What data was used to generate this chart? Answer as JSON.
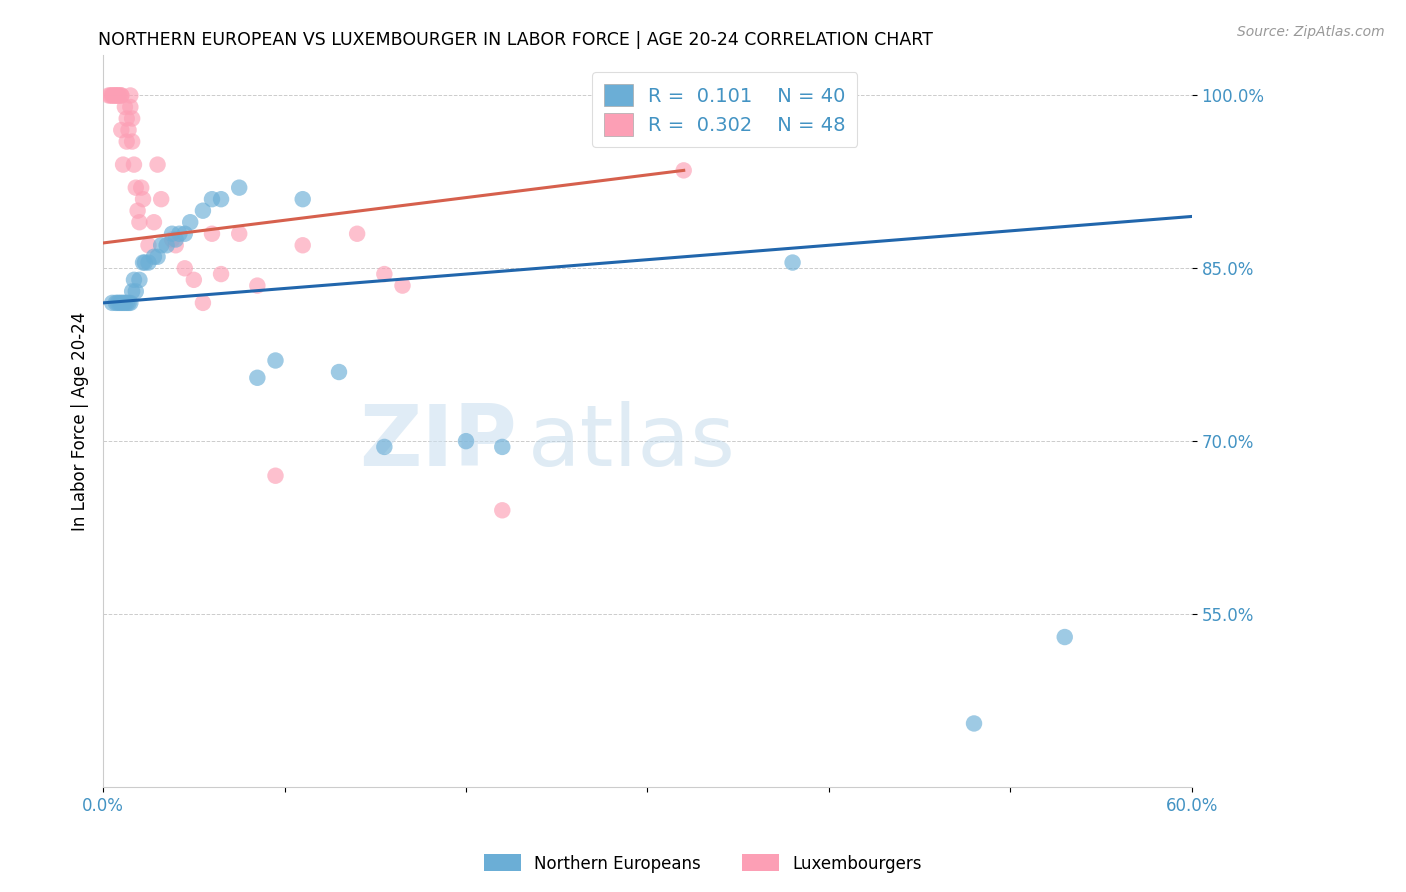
{
  "title": "NORTHERN EUROPEAN VS LUXEMBOURGER IN LABOR FORCE | AGE 20-24 CORRELATION CHART",
  "source": "Source: ZipAtlas.com",
  "ylabel": "In Labor Force | Age 20-24",
  "x_min": 0.0,
  "x_max": 0.6,
  "y_min": 0.4,
  "y_max": 1.035,
  "x_ticks": [
    0.0,
    0.1,
    0.2,
    0.3,
    0.4,
    0.5,
    0.6
  ],
  "x_tick_labels": [
    "0.0%",
    "",
    "",
    "",
    "",
    "",
    "60.0%"
  ],
  "y_ticks": [
    0.55,
    0.7,
    0.85,
    1.0
  ],
  "y_tick_labels": [
    "55.0%",
    "70.0%",
    "85.0%",
    "100.0%"
  ],
  "blue_R": 0.101,
  "blue_N": 40,
  "pink_R": 0.302,
  "pink_N": 48,
  "blue_color": "#6baed6",
  "pink_color": "#fc9fb5",
  "blue_line_color": "#2166ac",
  "pink_line_color": "#d6604d",
  "axis_color": "#4393c3",
  "grid_color": "#cccccc",
  "background_color": "#ffffff",
  "blue_x": [
    0.005,
    0.007,
    0.008,
    0.009,
    0.01,
    0.011,
    0.012,
    0.013,
    0.014,
    0.015,
    0.016,
    0.017,
    0.018,
    0.02,
    0.022,
    0.023,
    0.025,
    0.028,
    0.03,
    0.032,
    0.035,
    0.038,
    0.04,
    0.042,
    0.045,
    0.048,
    0.055,
    0.06,
    0.065,
    0.075,
    0.085,
    0.095,
    0.11,
    0.13,
    0.155,
    0.2,
    0.22,
    0.38,
    0.48,
    0.53
  ],
  "blue_y": [
    0.82,
    0.82,
    0.82,
    0.82,
    0.82,
    0.82,
    0.82,
    0.82,
    0.82,
    0.82,
    0.83,
    0.84,
    0.83,
    0.84,
    0.855,
    0.855,
    0.855,
    0.86,
    0.86,
    0.87,
    0.87,
    0.88,
    0.875,
    0.88,
    0.88,
    0.89,
    0.9,
    0.91,
    0.91,
    0.92,
    0.755,
    0.77,
    0.91,
    0.76,
    0.695,
    0.7,
    0.695,
    0.855,
    0.455,
    0.53
  ],
  "pink_x": [
    0.003,
    0.004,
    0.005,
    0.005,
    0.006,
    0.007,
    0.007,
    0.008,
    0.008,
    0.009,
    0.01,
    0.01,
    0.01,
    0.011,
    0.012,
    0.013,
    0.013,
    0.014,
    0.015,
    0.015,
    0.016,
    0.016,
    0.017,
    0.018,
    0.019,
    0.02,
    0.021,
    0.022,
    0.025,
    0.028,
    0.03,
    0.032,
    0.038,
    0.04,
    0.045,
    0.05,
    0.055,
    0.06,
    0.065,
    0.075,
    0.085,
    0.095,
    0.11,
    0.14,
    0.155,
    0.165,
    0.22,
    0.32
  ],
  "pink_y": [
    1.0,
    1.0,
    1.0,
    1.0,
    1.0,
    1.0,
    1.0,
    1.0,
    1.0,
    1.0,
    1.0,
    1.0,
    0.97,
    0.94,
    0.99,
    0.98,
    0.96,
    0.97,
    1.0,
    0.99,
    0.98,
    0.96,
    0.94,
    0.92,
    0.9,
    0.89,
    0.92,
    0.91,
    0.87,
    0.89,
    0.94,
    0.91,
    0.875,
    0.87,
    0.85,
    0.84,
    0.82,
    0.88,
    0.845,
    0.88,
    0.835,
    0.67,
    0.87,
    0.88,
    0.845,
    0.835,
    0.64,
    0.935
  ],
  "blue_trend_x0": 0.0,
  "blue_trend_y0": 0.82,
  "blue_trend_x1": 0.6,
  "blue_trend_y1": 0.895,
  "pink_trend_x0": 0.0,
  "pink_trend_y0": 0.872,
  "pink_trend_x1": 0.32,
  "pink_trend_y1": 0.935
}
